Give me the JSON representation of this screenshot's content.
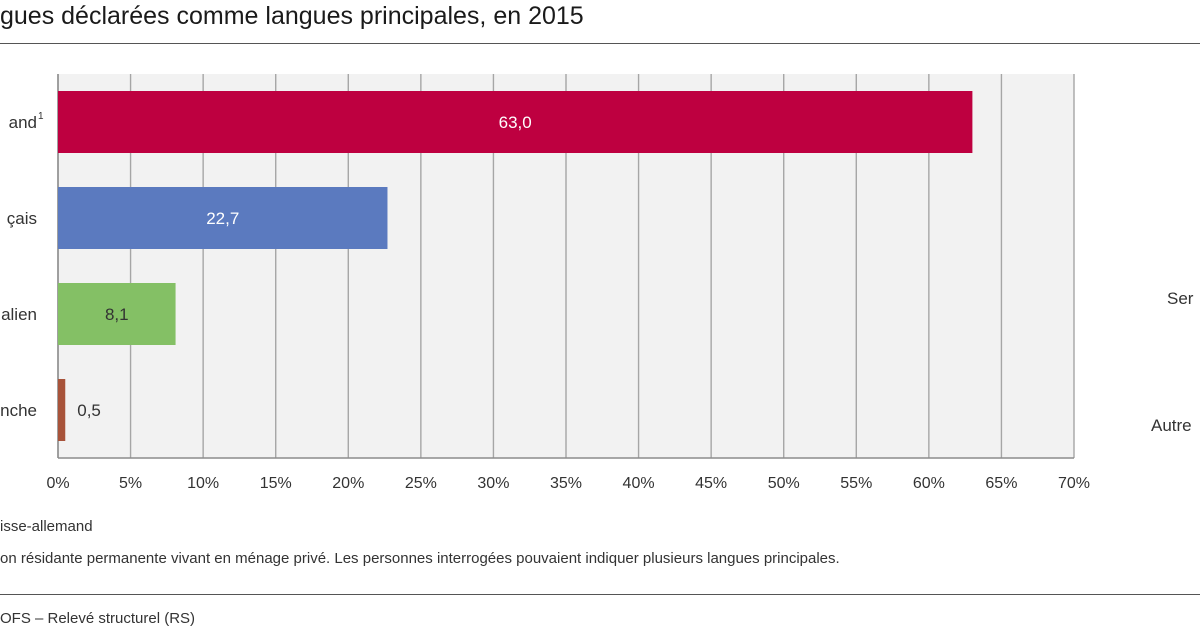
{
  "title": "gues déclarées comme langues principales, en 2015",
  "chart_data": {
    "type": "bar",
    "orientation": "horizontal",
    "categories": [
      "and",
      "çais",
      "alien",
      "nche"
    ],
    "category_superscripts": [
      "1",
      "",
      "",
      ""
    ],
    "values": [
      63.0,
      22.7,
      8.1,
      0.5
    ],
    "value_labels": [
      "63,0",
      "22,7",
      "8,1",
      "0,5"
    ],
    "bar_colors": [
      "#be0040",
      "#5b7abf",
      "#84c065",
      "#a8533a"
    ],
    "value_label_colors": [
      "#ffffff",
      "#ffffff",
      "#333333",
      "#333333"
    ],
    "value_label_positions": [
      "inside",
      "inside",
      "inside",
      "outside"
    ],
    "xlim": [
      0,
      70
    ],
    "xticks": [
      0,
      5,
      10,
      15,
      20,
      25,
      30,
      35,
      40,
      45,
      50,
      55,
      60,
      65,
      70
    ],
    "xtick_labels": [
      "0%",
      "5%",
      "10%",
      "15%",
      "20%",
      "25%",
      "30%",
      "35%",
      "40%",
      "45%",
      "50%",
      "55%",
      "60%",
      "65%",
      "70%"
    ],
    "grid": true,
    "plot_background": "#f2f2f2",
    "xlabel": "",
    "ylabel": ""
  },
  "side_labels": [
    "Ser",
    "Autre"
  ],
  "footnotes": [
    "isse-allemand",
    "on résidante permanente vivant en ménage privé. Les personnes interrogées pouvaient indiquer plusieurs langues principales."
  ],
  "source": "OFS – Relevé structurel (RS)"
}
